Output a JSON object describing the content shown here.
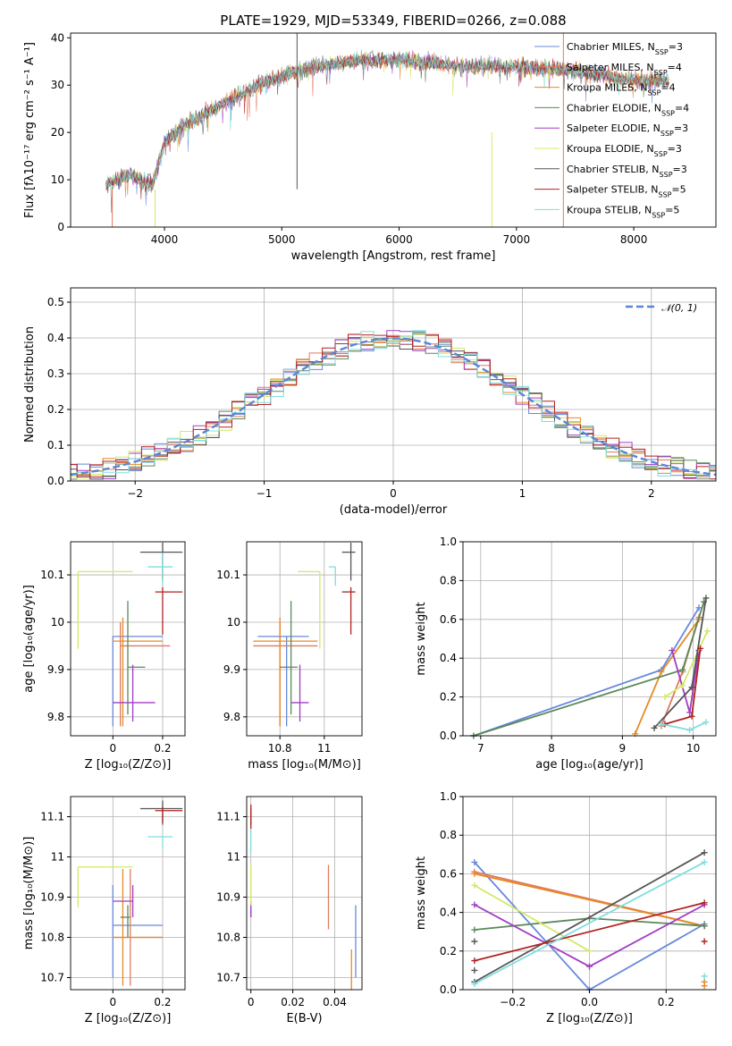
{
  "colors": {
    "Chabrier MILES": "#6688dd",
    "Salpeter MILES": "#e07a5f",
    "Kroupa MILES": "#e58a24",
    "Chabrier ELODIE": "#5a8a5a",
    "Salpeter ELODIE": "#a23cc4",
    "Kroupa ELODIE": "#d4e867",
    "Chabrier STELIB": "#555555",
    "Salpeter STELIB": "#b22222",
    "Kroupa STELIB": "#7fdde0",
    "gaussian": "#5b84d8"
  },
  "chart_data": [
    {
      "type": "line",
      "title": "PLATE=1929, MJD=53349, FIBERID=0266, z=0.088",
      "xlabel": "wavelength [Angstrom, rest frame]",
      "ylabel": "Flux [fλ10⁻¹⁷ erg cm⁻² s⁻¹ A⁻¹]",
      "xlim": [
        3200,
        8700
      ],
      "ylim": [
        0,
        41
      ],
      "xticks": [
        4000,
        5000,
        6000,
        7000,
        8000
      ],
      "yticks": [
        0,
        10,
        20,
        30,
        40
      ],
      "grid": false,
      "legend_position": "top-right",
      "series": [
        {
          "name": "Chabrier MILES",
          "nssp": "3"
        },
        {
          "name": "Salpeter MILES",
          "nssp": "4"
        },
        {
          "name": "Kroupa MILES",
          "nssp": "4"
        },
        {
          "name": "Chabrier ELODIE",
          "nssp": "4"
        },
        {
          "name": "Salpeter ELODIE",
          "nssp": "3"
        },
        {
          "name": "Kroupa ELODIE",
          "nssp": "3"
        },
        {
          "name": "Chabrier STELIB",
          "nssp": "3"
        },
        {
          "name": "Salpeter STELIB",
          "nssp": "5"
        },
        {
          "name": "Kroupa STELIB",
          "nssp": "5"
        }
      ],
      "continuum": [
        [
          3500,
          9
        ],
        [
          3700,
          11
        ],
        [
          3900,
          9
        ],
        [
          4000,
          18
        ],
        [
          4200,
          22
        ],
        [
          4500,
          26
        ],
        [
          4800,
          30
        ],
        [
          5000,
          32
        ],
        [
          5300,
          34
        ],
        [
          5600,
          35
        ],
        [
          6000,
          35.5
        ],
        [
          6500,
          34
        ],
        [
          7000,
          34
        ],
        [
          7500,
          33
        ],
        [
          8000,
          31
        ],
        [
          8300,
          31
        ]
      ]
    },
    {
      "type": "histogram",
      "xlabel": "(data-model)/error",
      "ylabel": "Normed distribution",
      "xlim": [
        -2.5,
        2.5
      ],
      "ylim": [
        0,
        0.54
      ],
      "xticks": [
        -2,
        -1,
        0,
        1,
        2
      ],
      "yticks": [
        0.0,
        0.1,
        0.2,
        0.3,
        0.4,
        0.5
      ],
      "grid": true,
      "legend": "𝒩(0, 1)",
      "legend_position": "top-right",
      "bin_width": 0.1,
      "gaussian": {
        "mean": 0,
        "sigma": 1
      }
    },
    {
      "type": "scatter",
      "panel": "age-vs-metallicity",
      "xlabel": "Z [log₁₀(Z/Z⊙)]",
      "ylabel": "age  [log₁₀(age/yr)]",
      "xlim": [
        -0.17,
        0.29
      ],
      "ylim": [
        9.76,
        10.17
      ],
      "xticks": [
        0.0,
        0.2
      ],
      "yticks": [
        9.8,
        9.9,
        10.0,
        10.1
      ],
      "grid": true,
      "points": [
        {
          "series": "Chabrier MILES",
          "x": 0.0,
          "y": 9.97,
          "xerr": [
            0.0,
            0.2
          ],
          "yerr": [
            0.19,
            0.0
          ]
        },
        {
          "series": "Salpeter MILES",
          "x": 0.03,
          "y": 9.95,
          "xerr": [
            0.0,
            0.2
          ],
          "yerr": [
            0.17,
            0.05
          ]
        },
        {
          "series": "Kroupa MILES",
          "x": 0.04,
          "y": 9.96,
          "xerr": [
            0.04,
            0.16
          ],
          "yerr": [
            0.18,
            0.05
          ]
        },
        {
          "series": "Chabrier ELODIE",
          "x": 0.06,
          "y": 9.905,
          "xerr": [
            0.0,
            0.07
          ],
          "yerr": [
            0.1,
            0.14
          ]
        },
        {
          "series": "Salpeter ELODIE",
          "x": 0.08,
          "y": 9.83,
          "xerr": [
            0.08,
            0.09
          ],
          "yerr": [
            0.04,
            0.08
          ]
        },
        {
          "series": "Kroupa ELODIE",
          "x": -0.14,
          "y": 10.107,
          "xerr": [
            0.0,
            0.22
          ],
          "yerr": [
            0.163,
            0.0
          ]
        },
        {
          "series": "Chabrier STELIB",
          "x": 0.2,
          "y": 10.148,
          "xerr": [
            0.09,
            0.08
          ],
          "yerr": [
            0.06,
            0.02
          ]
        },
        {
          "series": "Salpeter STELIB",
          "x": 0.2,
          "y": 10.064,
          "xerr": [
            0.03,
            0.08
          ],
          "yerr": [
            0.09,
            0.01
          ]
        },
        {
          "series": "Kroupa STELIB",
          "x": 0.2,
          "y": 10.117,
          "xerr": [
            0.06,
            0.04
          ],
          "yerr": [
            0.04,
            0.03
          ]
        }
      ]
    },
    {
      "type": "scatter",
      "panel": "age-vs-mass",
      "xlabel": "mass [log₁₀(M/M⊙)]",
      "ylabel": "",
      "xlim": [
        10.65,
        11.17
      ],
      "ylim": [
        9.76,
        10.17
      ],
      "xticks": [
        10.8,
        11.0
      ],
      "yticks": [
        9.8,
        9.9,
        10.0,
        10.1
      ],
      "grid": true,
      "points": [
        {
          "series": "Chabrier MILES",
          "x": 10.83,
          "y": 9.97,
          "xerr": [
            0.13,
            0.1
          ],
          "yerr": [
            0.19,
            0.0
          ]
        },
        {
          "series": "Salpeter MILES",
          "x": 10.8,
          "y": 9.95,
          "xerr": [
            0.12,
            0.17
          ],
          "yerr": [
            0.17,
            0.05
          ]
        },
        {
          "series": "Kroupa MILES",
          "x": 10.8,
          "y": 9.96,
          "xerr": [
            0.12,
            0.17
          ],
          "yerr": [
            0.18,
            0.05
          ]
        },
        {
          "series": "Chabrier ELODIE",
          "x": 10.85,
          "y": 9.905,
          "xerr": [
            0.05,
            0.03
          ],
          "yerr": [
            0.1,
            0.14
          ]
        },
        {
          "series": "Salpeter ELODIE",
          "x": 10.89,
          "y": 9.83,
          "xerr": [
            0.04,
            0.04
          ],
          "yerr": [
            0.04,
            0.08
          ]
        },
        {
          "series": "Kroupa ELODIE",
          "x": 10.98,
          "y": 10.107,
          "xerr": [
            0.1,
            0.0
          ],
          "yerr": [
            0.163,
            0.0
          ]
        },
        {
          "series": "Chabrier STELIB",
          "x": 11.12,
          "y": 10.148,
          "xerr": [
            0.04,
            0.02
          ],
          "yerr": [
            0.06,
            0.02
          ]
        },
        {
          "series": "Salpeter STELIB",
          "x": 11.12,
          "y": 10.064,
          "xerr": [
            0.04,
            0.02
          ],
          "yerr": [
            0.09,
            0.01
          ]
        },
        {
          "series": "Kroupa STELIB",
          "x": 11.05,
          "y": 10.117,
          "xerr": [
            0.03,
            0.0
          ],
          "yerr": [
            0.04,
            0.0
          ]
        }
      ]
    },
    {
      "type": "line",
      "panel": "mass-weight-vs-age",
      "xlabel": "age  [log₁₀(age/yr)]",
      "ylabel": "mass weight",
      "xlim": [
        6.75,
        10.32
      ],
      "ylim": [
        0,
        1.0
      ],
      "xticks": [
        7,
        8,
        9,
        10
      ],
      "yticks": [
        0.0,
        0.2,
        0.4,
        0.6,
        0.8,
        1.0
      ],
      "grid": true,
      "series": [
        {
          "series": "Chabrier MILES",
          "points": [
            [
              6.9,
              0.0
            ],
            [
              9.55,
              0.34
            ],
            [
              10.08,
              0.66
            ]
          ]
        },
        {
          "series": "Salpeter MILES",
          "points": [
            [
              9.55,
              0.05
            ],
            [
              9.85,
              0.33
            ],
            [
              10.08,
              0.61
            ]
          ]
        },
        {
          "series": "Kroupa MILES",
          "points": [
            [
              9.18,
              0.01
            ],
            [
              9.55,
              0.33
            ],
            [
              10.08,
              0.6
            ]
          ]
        },
        {
          "series": "Chabrier ELODIE",
          "points": [
            [
              6.9,
              0.0
            ],
            [
              9.85,
              0.34
            ],
            [
              10.15,
              0.69
            ]
          ]
        },
        {
          "series": "Salpeter ELODIE",
          "points": [
            [
              9.7,
              0.44
            ],
            [
              9.95,
              0.12
            ],
            [
              10.08,
              0.44
            ]
          ]
        },
        {
          "series": "Kroupa ELODIE",
          "points": [
            [
              9.6,
              0.2
            ],
            [
              9.85,
              0.26
            ],
            [
              10.2,
              0.54
            ]
          ]
        },
        {
          "series": "Chabrier STELIB",
          "points": [
            [
              9.45,
              0.04
            ],
            [
              9.98,
              0.25
            ],
            [
              10.18,
              0.71
            ]
          ]
        },
        {
          "series": "Salpeter STELIB",
          "points": [
            [
              9.6,
              0.06
            ],
            [
              9.98,
              0.1
            ],
            [
              10.1,
              0.45
            ]
          ]
        },
        {
          "series": "Kroupa STELIB",
          "points": [
            [
              9.55,
              0.06
            ],
            [
              9.95,
              0.03
            ],
            [
              10.18,
              0.07
            ]
          ]
        }
      ]
    },
    {
      "type": "scatter",
      "panel": "mass-vs-metallicity",
      "xlabel": "Z [log₁₀(Z/Z⊙)]",
      "ylabel": "mass [log₁₀(M/M⊙)]",
      "xlim": [
        -0.17,
        0.29
      ],
      "ylim": [
        10.67,
        11.15
      ],
      "xticks": [
        0.0,
        0.2
      ],
      "yticks": [
        10.7,
        10.8,
        10.9,
        11.0,
        11.1
      ],
      "grid": true,
      "points": [
        {
          "series": "Chabrier MILES",
          "x": 0.0,
          "y": 10.83,
          "xerr": [
            0.0,
            0.2
          ],
          "yerr": [
            0.13,
            0.1
          ]
        },
        {
          "series": "Salpeter MILES",
          "x": 0.07,
          "y": 10.8,
          "xerr": [
            0.07,
            0.13
          ],
          "yerr": [
            0.12,
            0.17
          ]
        },
        {
          "series": "Kroupa MILES",
          "x": 0.04,
          "y": 10.8,
          "xerr": [
            0.04,
            0.16
          ],
          "yerr": [
            0.12,
            0.17
          ]
        },
        {
          "series": "Chabrier ELODIE",
          "x": 0.06,
          "y": 10.85,
          "xerr": [
            0.03,
            0.01
          ],
          "yerr": [
            0.05,
            0.03
          ]
        },
        {
          "series": "Salpeter ELODIE",
          "x": 0.08,
          "y": 10.89,
          "xerr": [
            0.08,
            0.0
          ],
          "yerr": [
            0.04,
            0.04
          ]
        },
        {
          "series": "Kroupa ELODIE",
          "x": -0.14,
          "y": 10.975,
          "xerr": [
            0.0,
            0.22
          ],
          "yerr": [
            0.1,
            0.0
          ]
        },
        {
          "series": "Chabrier STELIB",
          "x": 0.2,
          "y": 11.12,
          "xerr": [
            0.09,
            0.08
          ],
          "yerr": [
            0.04,
            0.02
          ]
        },
        {
          "series": "Salpeter STELIB",
          "x": 0.2,
          "y": 11.115,
          "xerr": [
            0.03,
            0.08
          ],
          "yerr": [
            0.03,
            0.01
          ]
        },
        {
          "series": "Kroupa STELIB",
          "x": 0.2,
          "y": 11.05,
          "xerr": [
            0.06,
            0.04
          ],
          "yerr": [
            0.03,
            0.0
          ]
        }
      ]
    },
    {
      "type": "scatter",
      "panel": "mass-vs-extinction",
      "xlabel": "E(B-V)",
      "ylabel": "",
      "xlim": [
        -0.002,
        0.053
      ],
      "ylim": [
        10.67,
        11.15
      ],
      "xticks": [
        0.0,
        0.02,
        0.04
      ],
      "yticks": [
        10.7,
        10.8,
        10.9,
        11.0,
        11.1
      ],
      "grid": true,
      "points": [
        {
          "series": "Chabrier MILES",
          "x": 0.05,
          "y": 10.8,
          "yerr": [
            0.1,
            0.08
          ]
        },
        {
          "series": "Salpeter MILES",
          "x": 0.037,
          "y": 10.9,
          "yerr": [
            0.08,
            0.08
          ]
        },
        {
          "series": "Kroupa MILES",
          "x": 0.048,
          "y": 10.77,
          "yerr": [
            0.1,
            0.0
          ]
        },
        {
          "series": "Chabrier ELODIE",
          "x": 0.0,
          "y": 10.85,
          "yerr": [
            0.0,
            0.02
          ]
        },
        {
          "series": "Salpeter ELODIE",
          "x": 0.0,
          "y": 10.87,
          "yerr": [
            0.02,
            0.02
          ]
        },
        {
          "series": "Kroupa ELODIE",
          "x": 0.0,
          "y": 10.93,
          "yerr": [
            0.05,
            0.05
          ]
        },
        {
          "series": "Chabrier STELIB",
          "x": 0.0,
          "y": 11.1,
          "yerr": [
            0.02,
            0.02
          ]
        },
        {
          "series": "Salpeter STELIB",
          "x": 0.0,
          "y": 11.1,
          "yerr": [
            0.03,
            0.03
          ]
        },
        {
          "series": "Kroupa STELIB",
          "x": 0.0,
          "y": 11.04,
          "yerr": [
            0.03,
            0.03
          ]
        }
      ]
    },
    {
      "type": "line",
      "panel": "mass-weight-vs-metallicity",
      "xlabel": "Z [log₁₀(Z/Z⊙)]",
      "ylabel": "mass weight",
      "xlim": [
        -0.33,
        0.33
      ],
      "ylim": [
        0,
        1.0
      ],
      "xticks": [
        -0.2,
        0.0,
        0.2
      ],
      "yticks": [
        0.0,
        0.2,
        0.4,
        0.6,
        0.8,
        1.0
      ],
      "grid": true,
      "series": [
        {
          "series": "Chabrier MILES",
          "points": [
            [
              -0.3,
              0.66
            ],
            [
              0.0,
              0.0
            ],
            [
              0.3,
              0.34
            ]
          ]
        },
        {
          "series": "Salpeter MILES",
          "points": [
            [
              -0.3,
              0.61
            ],
            [
              0.3,
              0.33
            ]
          ]
        },
        {
          "series": "Kroupa MILES",
          "points": [
            [
              -0.3,
              0.6
            ],
            [
              0.3,
              0.33
            ]
          ]
        },
        {
          "series": "Chabrier ELODIE",
          "points": [
            [
              -0.3,
              0.31
            ],
            [
              0.0,
              0.37
            ],
            [
              0.3,
              0.33
            ]
          ]
        },
        {
          "series": "Salpeter ELODIE",
          "points": [
            [
              -0.3,
              0.44
            ],
            [
              0.0,
              0.12
            ],
            [
              0.3,
              0.44
            ]
          ]
        },
        {
          "series": "Kroupa ELODIE",
          "points": [
            [
              -0.3,
              0.54
            ],
            [
              0.0,
              0.2
            ]
          ]
        },
        {
          "series": "Chabrier STELIB",
          "points": [
            [
              -0.3,
              0.04
            ],
            [
              0.3,
              0.71
            ]
          ]
        },
        {
          "series": "Salpeter STELIB",
          "points": [
            [
              -0.3,
              0.15
            ],
            [
              0.3,
              0.45
            ]
          ]
        },
        {
          "series": "Kroupa STELIB",
          "points": [
            [
              -0.3,
              0.03
            ],
            [
              0.3,
              0.66
            ]
          ]
        }
      ],
      "extra_markers": [
        {
          "series": "Chabrier STELIB",
          "x": -0.3,
          "y": 0.25
        },
        {
          "series": "Chabrier STELIB",
          "x": -0.3,
          "y": 0.1
        },
        {
          "series": "Salpeter STELIB",
          "x": 0.3,
          "y": 0.25
        },
        {
          "series": "Kroupa MILES",
          "x": 0.3,
          "y": 0.02
        },
        {
          "series": "Kroupa MILES",
          "x": 0.3,
          "y": 0.04
        },
        {
          "series": "Kroupa STELIB",
          "x": 0.3,
          "y": 0.07
        }
      ]
    }
  ]
}
